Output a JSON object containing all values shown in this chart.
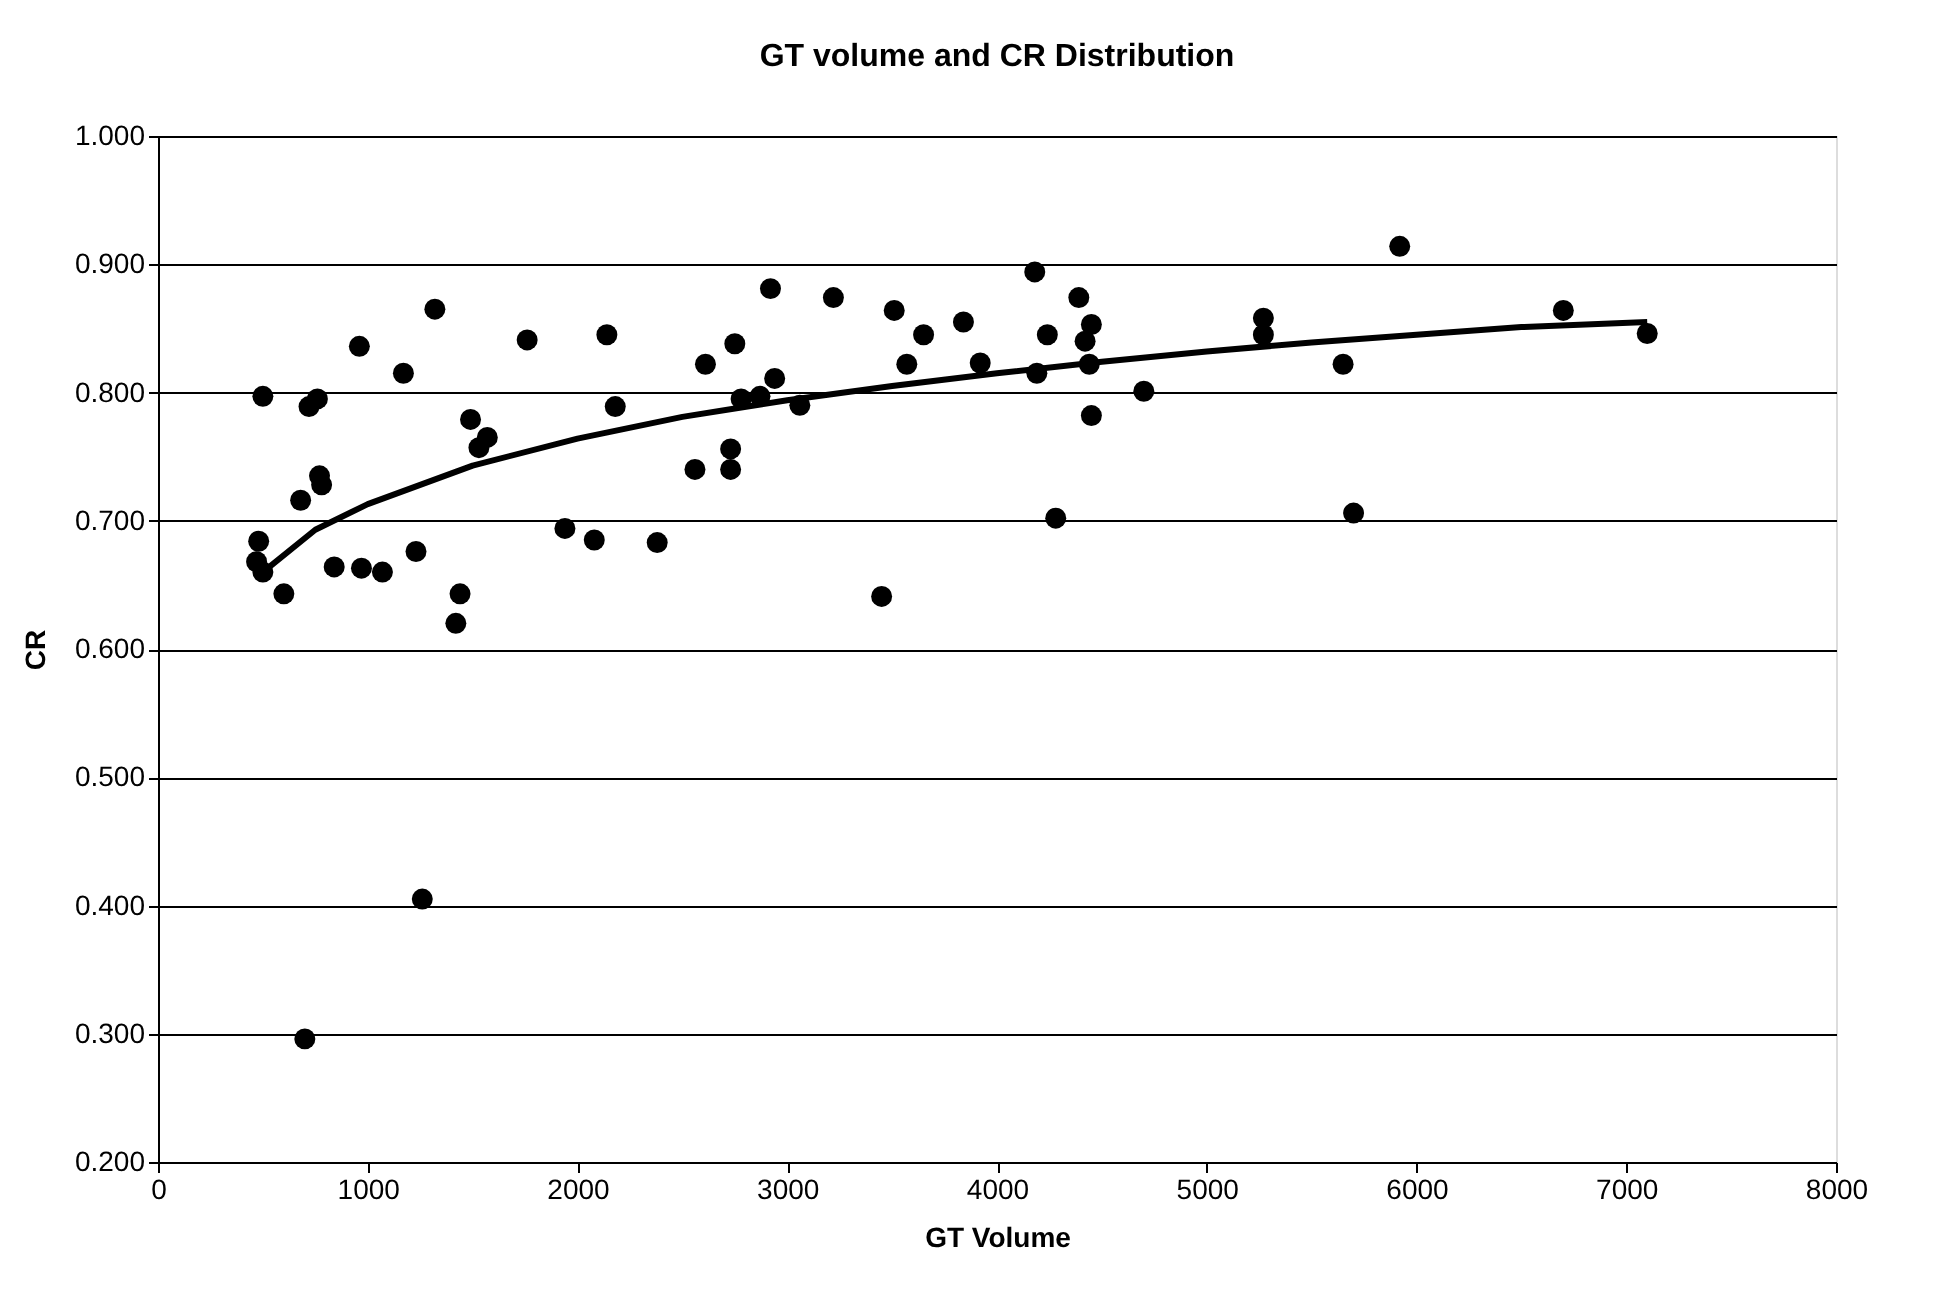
{
  "chart_data": {
    "type": "scatter",
    "title": "GT volume and CR Distribution",
    "xlabel": "GT Volume",
    "ylabel": "CR",
    "xlim": [
      0,
      8000
    ],
    "xticks": [
      0,
      1000,
      2000,
      3000,
      4000,
      5000,
      6000,
      7000,
      8000
    ],
    "ylim": [
      0.2,
      1.0
    ],
    "yticks": [
      {
        "value": 0.2,
        "label": "0.200"
      },
      {
        "value": 0.3,
        "label": "0.300"
      },
      {
        "value": 0.4,
        "label": "0.400"
      },
      {
        "value": 0.5,
        "label": "0.500"
      },
      {
        "value": 0.6,
        "label": "0.600"
      },
      {
        "value": 0.7,
        "label": "0.700"
      },
      {
        "value": 0.8,
        "label": "0.800"
      },
      {
        "value": 0.9,
        "label": "0.900"
      },
      {
        "value": 1.0,
        "label": "1.000"
      }
    ],
    "grid": "y",
    "series": [
      {
        "marker": "circle",
        "color": "#000000",
        "x": [
          470,
          480,
          500,
          500,
          600,
          680,
          700,
          720,
          760,
          770,
          780,
          840,
          960,
          970,
          1070,
          1170,
          1230,
          1260,
          1320,
          1420,
          1440,
          1490,
          1530,
          1570,
          1760,
          1940,
          2080,
          2140,
          2180,
          2380,
          2560,
          2610,
          2730,
          2730,
          2750,
          2780,
          2870,
          2920,
          2940,
          3060,
          3220,
          3450,
          3510,
          3570,
          3650,
          3840,
          3920,
          4180,
          4190,
          4240,
          4280,
          4390,
          4420,
          4440,
          4450,
          4450,
          4700,
          5270,
          5270,
          5650,
          5700,
          5920,
          6700,
          7100
        ],
        "values": [
          0.668,
          0.684,
          0.66,
          0.797,
          0.643,
          0.716,
          0.296,
          0.789,
          0.795,
          0.735,
          0.728,
          0.664,
          0.836,
          0.663,
          0.66,
          0.815,
          0.676,
          0.405,
          0.865,
          0.62,
          0.643,
          0.779,
          0.757,
          0.765,
          0.841,
          0.694,
          0.685,
          0.845,
          0.789,
          0.683,
          0.74,
          0.822,
          0.74,
          0.756,
          0.838,
          0.795,
          0.797,
          0.881,
          0.811,
          0.79,
          0.874,
          0.641,
          0.864,
          0.822,
          0.845,
          0.855,
          0.823,
          0.894,
          0.815,
          0.845,
          0.702,
          0.874,
          0.84,
          0.822,
          0.853,
          0.782,
          0.801,
          0.858,
          0.845,
          0.822,
          0.706,
          0.914,
          0.864,
          0.846
        ]
      },
      {
        "type": "line",
        "marker": "none",
        "color": "#000000",
        "line_style": "solid",
        "x": [
          500,
          750,
          1000,
          1500,
          2000,
          2500,
          3000,
          3500,
          4000,
          4500,
          5000,
          5500,
          6000,
          6500,
          7100
        ],
        "values": [
          0.66,
          0.693,
          0.713,
          0.743,
          0.764,
          0.781,
          0.794,
          0.805,
          0.815,
          0.824,
          0.832,
          0.839,
          0.845,
          0.851,
          0.855
        ]
      }
    ]
  }
}
